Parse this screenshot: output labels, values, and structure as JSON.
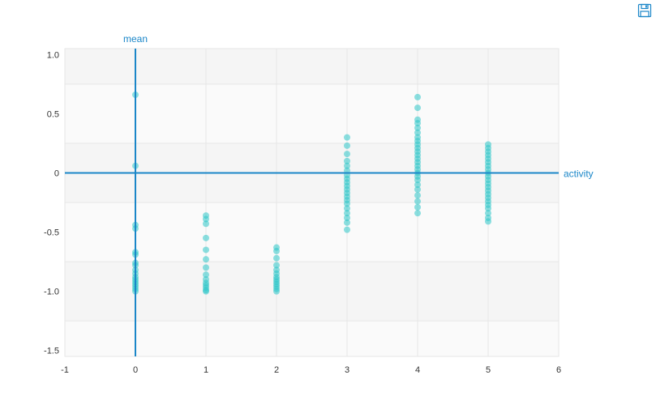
{
  "toolbar": {
    "save_icon": "floppy-disk-icon"
  },
  "colors": {
    "axis": "#1a86c8",
    "points": "#2ec7c9",
    "band_dark": "#f5f5f5",
    "band_light": "#fafafa",
    "grid": "#e6e6e6",
    "tick_text": "#333333"
  },
  "chart_data": {
    "type": "scatter",
    "xlabel": "activity",
    "ylabel": "mean",
    "xlim": [
      -1,
      6
    ],
    "ylim": [
      -1.55,
      1.05
    ],
    "x_ticks": [
      -1,
      0,
      1,
      2,
      3,
      4,
      5,
      6
    ],
    "y_ticks": [
      1.0,
      0.5,
      0,
      -0.5,
      -1.0,
      -1.5
    ],
    "x_tick_labels": [
      "-1",
      "0",
      "1",
      "2",
      "3",
      "4",
      "5",
      "6"
    ],
    "y_tick_labels": [
      "1.0",
      "0.5",
      "0",
      "-0.5",
      "-1.0",
      "-1.5"
    ],
    "grid": true,
    "series": [
      {
        "points": [
          [
            0,
            0.66
          ],
          [
            0,
            0.06
          ],
          [
            0,
            -0.44
          ],
          [
            0,
            -0.47
          ],
          [
            0,
            -0.67
          ],
          [
            0,
            -0.69
          ],
          [
            0,
            -0.76
          ],
          [
            0,
            -0.78
          ],
          [
            0,
            -0.82
          ],
          [
            0,
            -0.85
          ],
          [
            0,
            -0.88
          ],
          [
            0,
            -0.9
          ],
          [
            0,
            -0.92
          ],
          [
            0,
            -0.94
          ],
          [
            0,
            -0.96
          ],
          [
            0,
            -0.98
          ],
          [
            0,
            -1.0
          ],
          [
            1,
            -0.36
          ],
          [
            1,
            -0.39
          ],
          [
            1,
            -0.43
          ],
          [
            1,
            -0.55
          ],
          [
            1,
            -0.65
          ],
          [
            1,
            -0.73
          ],
          [
            1,
            -0.8
          ],
          [
            1,
            -0.86
          ],
          [
            1,
            -0.9
          ],
          [
            1,
            -0.93
          ],
          [
            1,
            -0.95
          ],
          [
            1,
            -0.97
          ],
          [
            1,
            -0.99
          ],
          [
            1,
            -1.0
          ],
          [
            2,
            -0.63
          ],
          [
            2,
            -0.66
          ],
          [
            2,
            -0.72
          ],
          [
            2,
            -0.78
          ],
          [
            2,
            -0.82
          ],
          [
            2,
            -0.85
          ],
          [
            2,
            -0.88
          ],
          [
            2,
            -0.9
          ],
          [
            2,
            -0.92
          ],
          [
            2,
            -0.94
          ],
          [
            2,
            -0.96
          ],
          [
            2,
            -0.98
          ],
          [
            2,
            -1.0
          ],
          [
            3,
            0.3
          ],
          [
            3,
            0.23
          ],
          [
            3,
            0.16
          ],
          [
            3,
            0.1
          ],
          [
            3,
            0.06
          ],
          [
            3,
            0.02
          ],
          [
            3,
            -0.02
          ],
          [
            3,
            -0.05
          ],
          [
            3,
            -0.08
          ],
          [
            3,
            -0.11
          ],
          [
            3,
            -0.14
          ],
          [
            3,
            -0.17
          ],
          [
            3,
            -0.2
          ],
          [
            3,
            -0.23
          ],
          [
            3,
            -0.26
          ],
          [
            3,
            -0.3
          ],
          [
            3,
            -0.34
          ],
          [
            3,
            -0.38
          ],
          [
            3,
            -0.42
          ],
          [
            3,
            -0.48
          ],
          [
            4,
            0.64
          ],
          [
            4,
            0.55
          ],
          [
            4,
            0.45
          ],
          [
            4,
            0.42
          ],
          [
            4,
            0.38
          ],
          [
            4,
            0.34
          ],
          [
            4,
            0.3
          ],
          [
            4,
            0.27
          ],
          [
            4,
            0.24
          ],
          [
            4,
            0.21
          ],
          [
            4,
            0.18
          ],
          [
            4,
            0.15
          ],
          [
            4,
            0.12
          ],
          [
            4,
            0.09
          ],
          [
            4,
            0.06
          ],
          [
            4,
            0.03
          ],
          [
            4,
            0.0
          ],
          [
            4,
            -0.03
          ],
          [
            4,
            -0.06
          ],
          [
            4,
            -0.1
          ],
          [
            4,
            -0.14
          ],
          [
            4,
            -0.19
          ],
          [
            4,
            -0.24
          ],
          [
            4,
            -0.29
          ],
          [
            4,
            -0.34
          ],
          [
            5,
            0.24
          ],
          [
            5,
            0.21
          ],
          [
            5,
            0.18
          ],
          [
            5,
            0.15
          ],
          [
            5,
            0.12
          ],
          [
            5,
            0.09
          ],
          [
            5,
            0.06
          ],
          [
            5,
            0.03
          ],
          [
            5,
            0.0
          ],
          [
            5,
            -0.03
          ],
          [
            5,
            -0.06
          ],
          [
            5,
            -0.09
          ],
          [
            5,
            -0.12
          ],
          [
            5,
            -0.15
          ],
          [
            5,
            -0.18
          ],
          [
            5,
            -0.21
          ],
          [
            5,
            -0.24
          ],
          [
            5,
            -0.27
          ],
          [
            5,
            -0.3
          ],
          [
            5,
            -0.34
          ],
          [
            5,
            -0.38
          ],
          [
            5,
            -0.41
          ]
        ]
      }
    ]
  }
}
